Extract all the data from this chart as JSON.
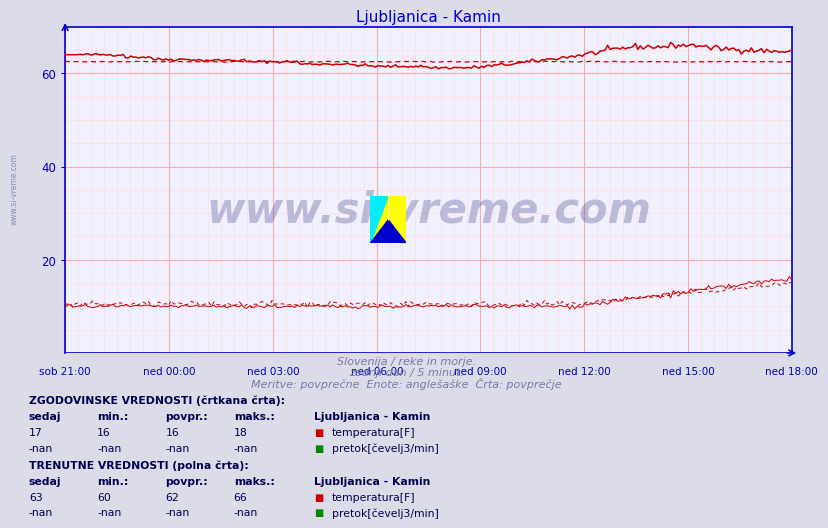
{
  "title": "Ljubljanica - Kamin",
  "bg_color": "#dcdce8",
  "plot_bg_color": "#f0f0ff",
  "grid_major_color": "#ffaaaa",
  "grid_minor_color": "#ffdddd",
  "x_labels": [
    "sob 21:00",
    "ned 00:00",
    "ned 03:00",
    "ned 06:00",
    "ned 09:00",
    "ned 12:00",
    "ned 15:00",
    "ned 18:00"
  ],
  "x_ticks_norm": [
    0.0,
    0.143,
    0.286,
    0.429,
    0.571,
    0.714,
    0.857,
    1.0
  ],
  "n_points": 289,
  "y_min": 0,
  "y_max": 70,
  "y_ticks": [
    20,
    40,
    60
  ],
  "temp_color": "#cc0000",
  "flow_color": "#006600",
  "axis_color": "#0000cc",
  "title_color": "#0000cc",
  "label_color": "#0000bb",
  "watermark_color": "#1a1a6e",
  "watermark_text": "www.si-vreme.com",
  "side_text": "www.si-vreme.com",
  "subtitle_line1": "Slovenija / reke in morje.",
  "subtitle_line2": "zadnji dan / 5 minut.",
  "subtitle_line3": "Meritve: povprečne  Enote: anglešaške  Črta: povprečje",
  "legend_title_hist": "ZGODOVINSKE VREDNOSTI (črtkana črta):",
  "legend_title_curr": "TRENUTNE VREDNOSTI (polna črta):",
  "legend_station": "Ljubljanica - Kamin",
  "legend_temp_label": "temperatura[F]",
  "legend_flow_label": "pretok[čevelj3/min]",
  "table_headers": [
    "sedaj",
    "min.:",
    "povpr.:",
    "maks.:"
  ],
  "hist_temp_values": [
    "17",
    "16",
    "16",
    "18"
  ],
  "hist_flow_values": [
    "-nan",
    "-nan",
    "-nan",
    "-nan"
  ],
  "curr_temp_values": [
    "63",
    "60",
    "62",
    "66"
  ],
  "curr_flow_values": [
    "-nan",
    "-nan",
    "-nan",
    "-nan"
  ]
}
